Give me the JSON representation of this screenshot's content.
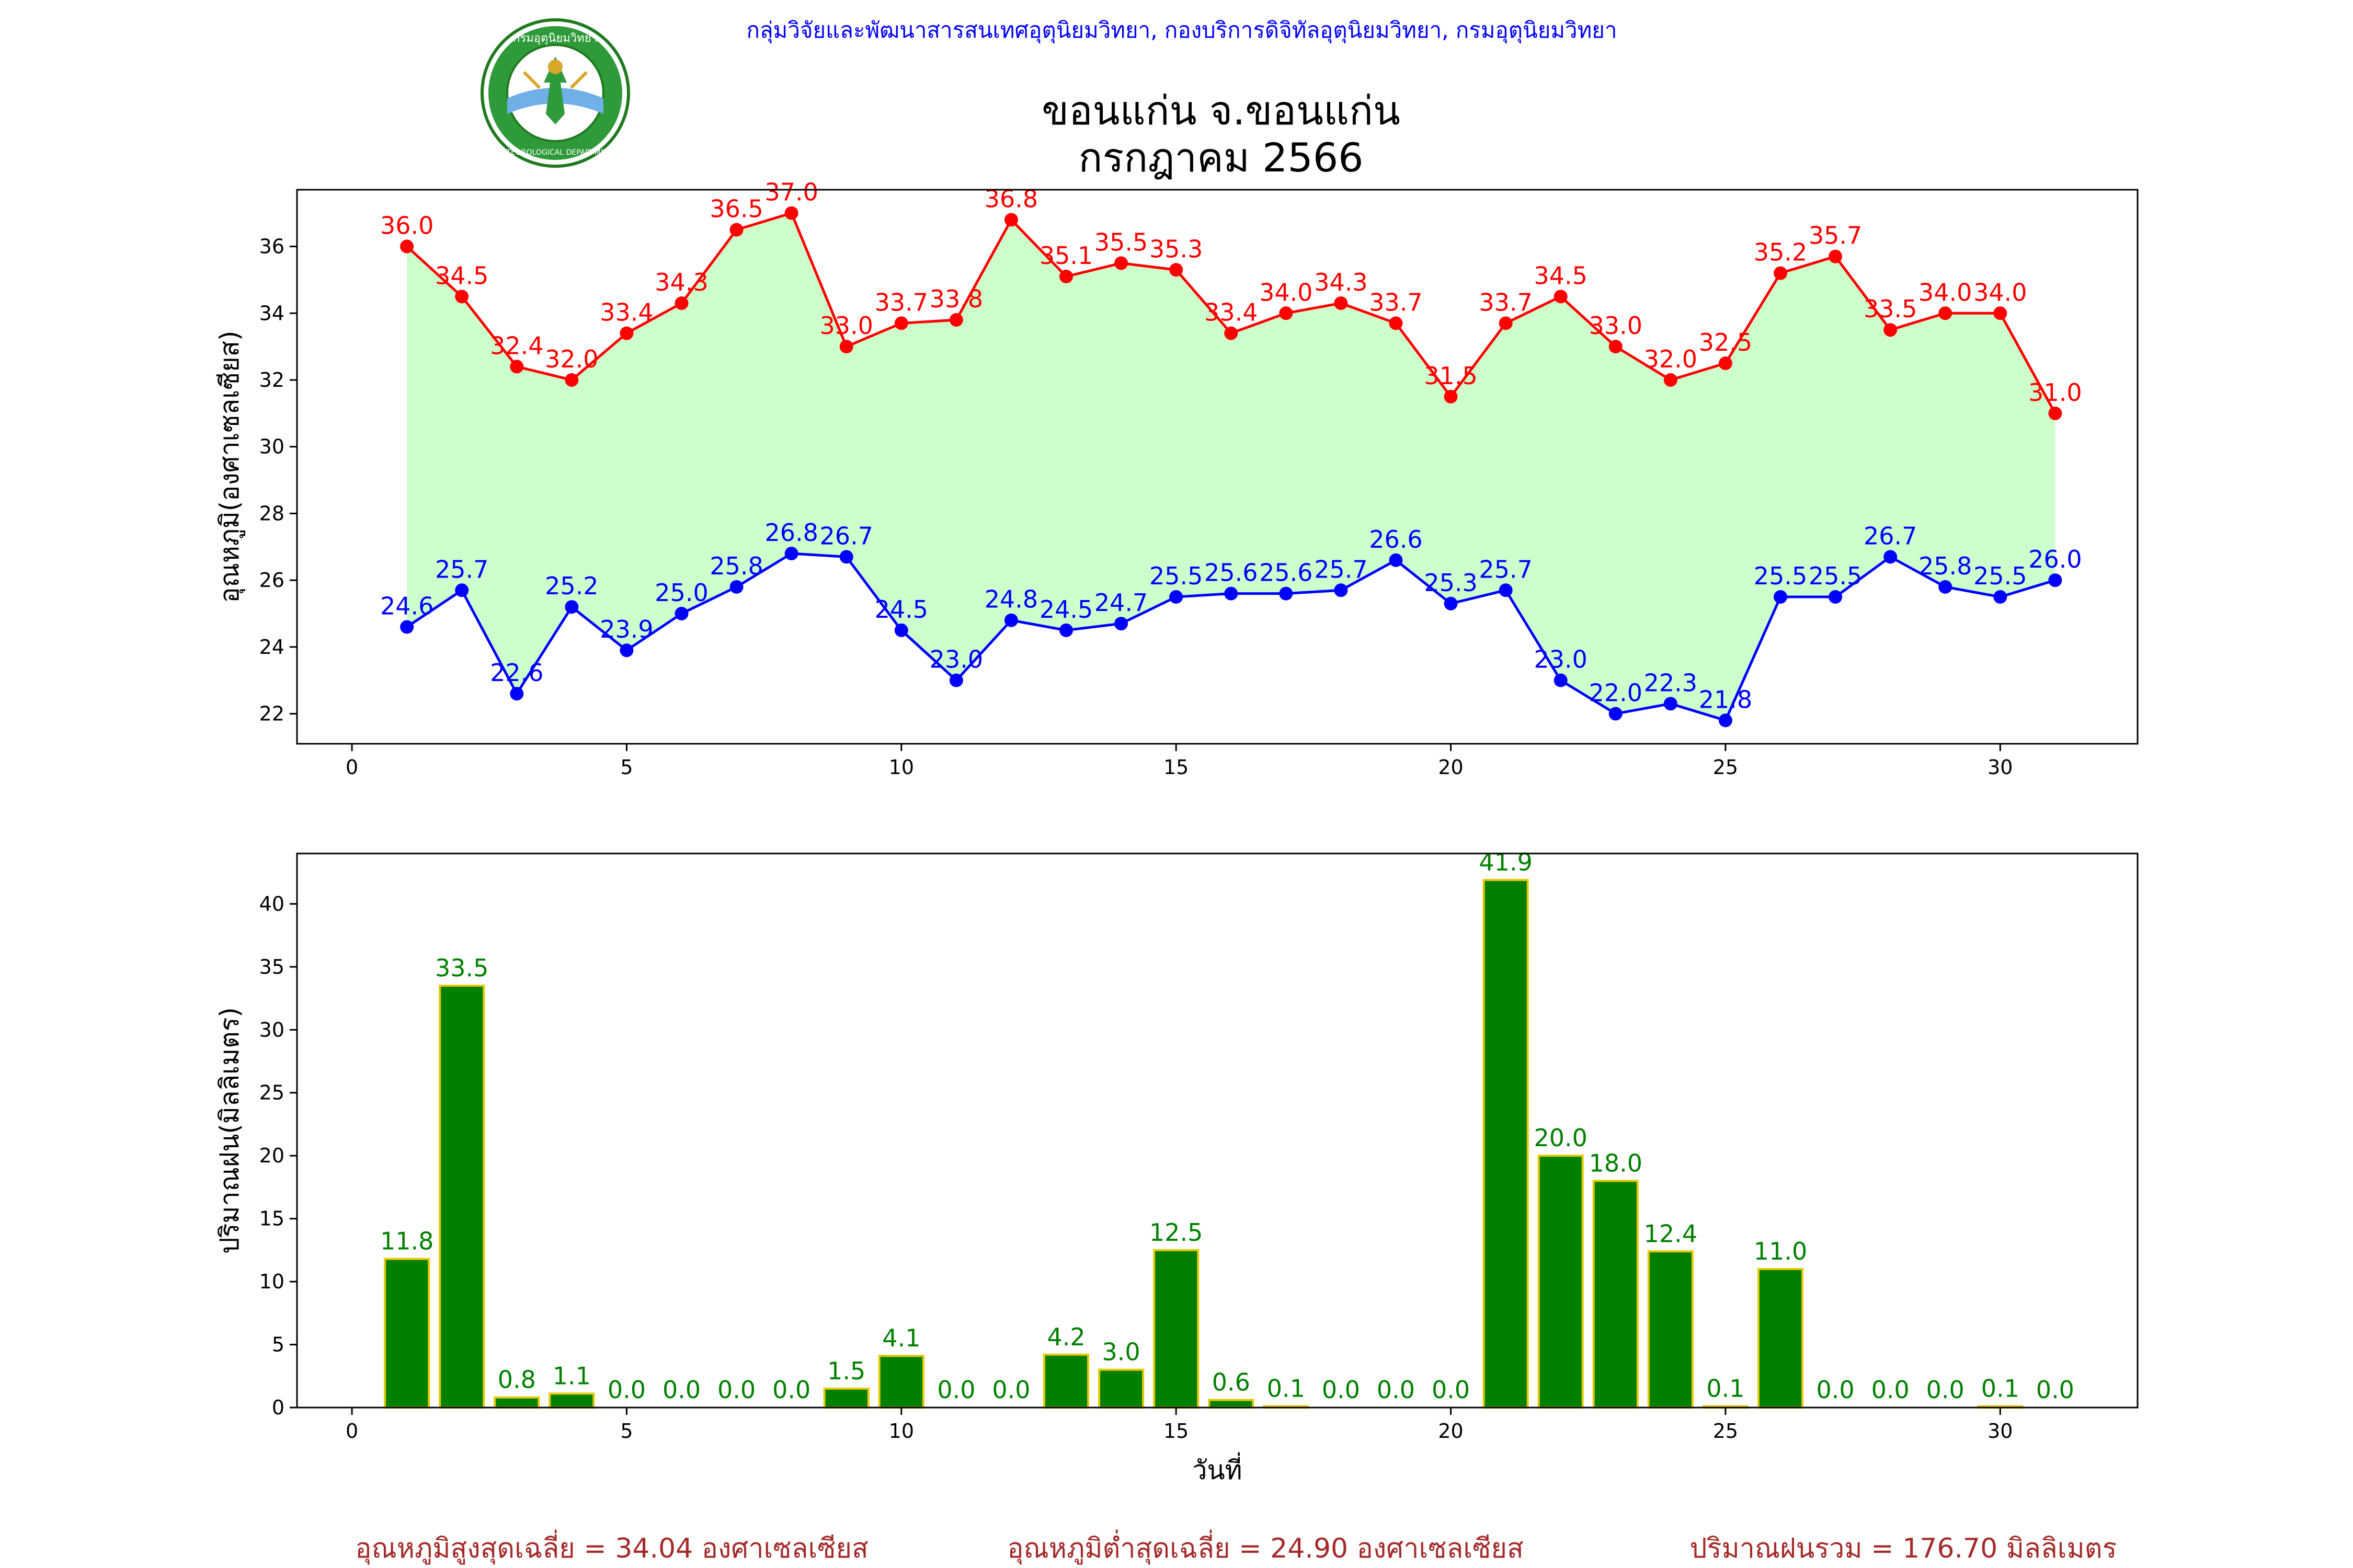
{
  "header": {
    "agency_line": "กลุ่มวิจัยและพัฒนาสารสนเทศอุตุนิยมวิทยา, กองบริการดิจิทัลอุตุนิยมวิทยา, กรมอุตุนิยมวิทยา",
    "logo_icon": "meteorological-department-seal-icon",
    "logo_text_top": "กรมอุตุนิยมวิทยา",
    "logo_text_bottom": "METEOROLOGICAL DEPARTMENT"
  },
  "title": {
    "line1": "ขอนแก่น จ.ขอนแก่น",
    "line2": "กรกฎาคม 2566"
  },
  "footer": {
    "avg_max": "อุณหภูมิสูงสุดเฉลี่ย = 34.04 องศาเซลเซียส",
    "avg_min": "อุณหภูมิต่ำสุดเฉลี่ย = 24.90 องศาเซลเซียส",
    "total_rain": "ปริมาณฝนรวม = 176.70 มิลลิเมตร"
  },
  "colors": {
    "max_line": "#ff0000",
    "min_line": "#0000ff",
    "fill": "#ccffcc",
    "bar_fill": "#008000",
    "bar_edge": "#e6c800",
    "footer": "#a52a2a",
    "header": "#0000ff"
  },
  "chart_data": [
    {
      "type": "line",
      "title": "",
      "xlabel": "",
      "ylabel": "อุณหภูมิ(องศาเซลเซียส)",
      "xlim": [
        -1,
        32.5
      ],
      "ylim": [
        21.1,
        37.7
      ],
      "xticks": [
        0,
        5,
        10,
        15,
        20,
        25,
        30
      ],
      "yticks": [
        22,
        24,
        26,
        28,
        30,
        32,
        34,
        36
      ],
      "grid": false,
      "fill_between_series": true,
      "x": [
        1,
        2,
        3,
        4,
        5,
        6,
        7,
        8,
        9,
        10,
        11,
        12,
        13,
        14,
        15,
        16,
        17,
        18,
        19,
        20,
        21,
        22,
        23,
        24,
        25,
        26,
        27,
        28,
        29,
        30,
        31
      ],
      "series": [
        {
          "values": [
            36.0,
            34.5,
            32.4,
            32.0,
            33.4,
            34.3,
            36.5,
            37.0,
            33.0,
            33.7,
            33.8,
            36.8,
            35.1,
            35.5,
            35.3,
            33.4,
            34.0,
            34.3,
            33.7,
            31.5,
            33.7,
            34.5,
            33.0,
            32.0,
            32.5,
            35.2,
            35.7,
            33.5,
            34.0,
            34.0,
            31.0
          ],
          "color": "#ff0000"
        },
        {
          "values": [
            24.6,
            25.7,
            22.6,
            25.2,
            23.9,
            25.0,
            25.8,
            26.8,
            26.7,
            24.5,
            23.0,
            24.8,
            24.5,
            24.7,
            25.5,
            25.6,
            25.6,
            25.7,
            26.6,
            25.3,
            25.7,
            23.0,
            22.0,
            22.3,
            21.8,
            25.5,
            25.5,
            26.7,
            25.8,
            25.5,
            26.0
          ],
          "color": "#0000ff"
        }
      ]
    },
    {
      "type": "bar",
      "title": "",
      "xlabel": "วันที่",
      "ylabel": "ปริมาณฝน(มิลลิเมตร)",
      "xlim": [
        -1,
        32.5
      ],
      "ylim": [
        0,
        44
      ],
      "xticks": [
        0,
        5,
        10,
        15,
        20,
        25,
        30
      ],
      "yticks": [
        0,
        5,
        10,
        15,
        20,
        25,
        30,
        35,
        40
      ],
      "grid": false,
      "x": [
        1,
        2,
        3,
        4,
        5,
        6,
        7,
        8,
        9,
        10,
        11,
        12,
        13,
        14,
        15,
        16,
        17,
        18,
        19,
        20,
        21,
        22,
        23,
        24,
        25,
        26,
        27,
        28,
        29,
        30,
        31
      ],
      "values": [
        11.8,
        33.5,
        0.8,
        1.1,
        0.0,
        0.0,
        0.0,
        0.0,
        1.5,
        4.1,
        0.0,
        0.0,
        4.2,
        3.0,
        12.5,
        0.6,
        0.1,
        0.0,
        0.0,
        0.0,
        41.9,
        20.0,
        18.0,
        12.4,
        0.1,
        11.0,
        0.0,
        0.0,
        0.0,
        0.1,
        0.0
      ],
      "color": "#008000"
    }
  ]
}
